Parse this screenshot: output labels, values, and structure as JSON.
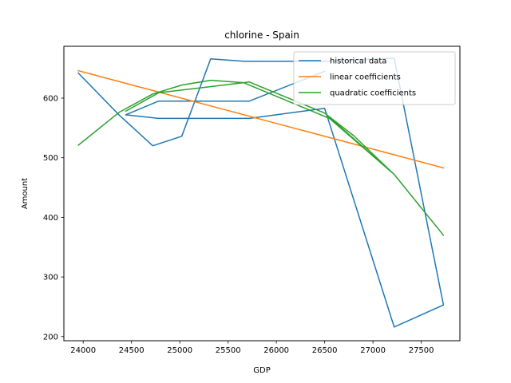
{
  "chart_data": {
    "type": "line",
    "title": "chlorine - Spain",
    "xlabel": "GDP",
    "ylabel": "Amount",
    "xlim": [
      23800,
      27900
    ],
    "ylim": [
      193,
      687
    ],
    "xticks": [
      24000,
      24500,
      25000,
      25500,
      26000,
      26500,
      27000,
      27500
    ],
    "yticks": [
      200,
      300,
      400,
      500,
      600
    ],
    "grid": false,
    "legend_position": "top-right",
    "series": [
      {
        "name": "historical data",
        "color": "#1f77b4",
        "x": [
          23950,
          24370,
          24720,
          25020,
          25320,
          25660,
          26550,
          27220,
          27730,
          27220,
          26500,
          25720,
          24780,
          24440,
          24780,
          25720,
          26500
        ],
        "y": [
          642,
          572,
          520,
          536,
          666,
          662,
          662,
          667,
          253,
          216,
          583,
          566,
          566,
          572,
          595,
          595,
          645
        ]
      },
      {
        "name": "linear coefficients",
        "color": "#ff7f0e",
        "x": [
          23950,
          27730
        ],
        "y": [
          646,
          483
        ]
      },
      {
        "name": "quadratic coefficients",
        "color": "#2ca02c",
        "x": [
          23950,
          24370,
          24720,
          25020,
          25320,
          25660,
          26550,
          27220,
          27730,
          27220,
          26500,
          25720,
          24780,
          24440,
          24780,
          25720,
          26500,
          26800,
          27220
        ],
        "y": [
          521,
          576,
          607,
          622,
          630,
          626,
          566,
          472,
          370,
          472,
          575,
          627,
          609,
          578,
          609,
          627,
          575,
          537,
          472
        ]
      }
    ]
  }
}
